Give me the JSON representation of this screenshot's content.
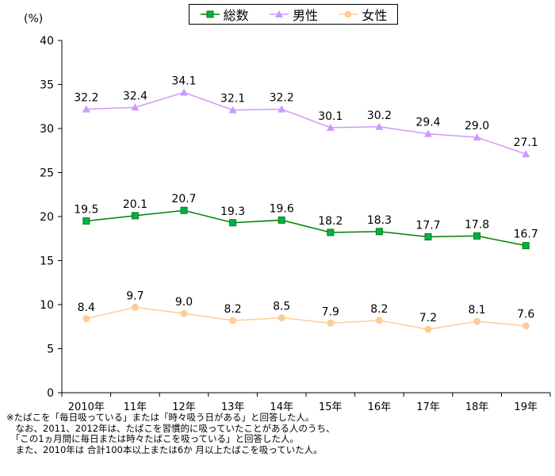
{
  "chart_data": {
    "type": "line",
    "unit_label": "(%)",
    "categories": [
      "2010年",
      "11年",
      "12年",
      "13年",
      "14年",
      "15年",
      "16年",
      "17年",
      "18年",
      "19年"
    ],
    "ylim": [
      0,
      40
    ],
    "yticks": [
      0,
      5,
      10,
      15,
      20,
      25,
      30,
      35,
      40
    ],
    "grid": false,
    "legend_position": "top-center",
    "series": [
      {
        "name": "総数",
        "marker": "square",
        "color": "#008000",
        "marker_color": "#00b050",
        "values": [
          19.5,
          20.1,
          20.7,
          19.3,
          19.6,
          18.2,
          18.3,
          17.7,
          17.8,
          16.7
        ],
        "labels": [
          "19.5",
          "20.1",
          "20.7",
          "19.3",
          "19.6",
          "18.2",
          "18.3",
          "17.7",
          "17.8",
          "16.7"
        ]
      },
      {
        "name": "男性",
        "marker": "triangle",
        "color": "#cc99ff",
        "marker_color": "#cc99ff",
        "values": [
          32.2,
          32.4,
          34.1,
          32.1,
          32.2,
          30.1,
          30.2,
          29.4,
          29.0,
          27.1
        ],
        "labels": [
          "32.2",
          "32.4",
          "34.1",
          "32.1",
          "32.2",
          "30.1",
          "30.2",
          "29.4",
          "29.0",
          "27.1"
        ]
      },
      {
        "name": "女性",
        "marker": "circle",
        "color": "#ffcc99",
        "marker_color": "#ffcc99",
        "values": [
          8.4,
          9.7,
          9.0,
          8.2,
          8.5,
          7.9,
          8.2,
          7.2,
          8.1,
          7.6
        ],
        "labels": [
          "8.4",
          "9.7",
          "9.0",
          "8.2",
          "8.5",
          "7.9",
          "8.2",
          "7.2",
          "8.1",
          "7.6"
        ]
      }
    ]
  },
  "footnotes": [
    "※たばこを「毎日吸っている」または「時々吸う日がある」と回答した人。",
    "　なお、2011、2012年は、たばこを習慣的に吸っていたことがある人のうち、",
    "　「この1ヵ月間に毎日または時々たばこを吸っている」と回答した人。",
    "　また、2010年は 合計100本以上または6か 月以上たばこを吸っていた人。"
  ]
}
